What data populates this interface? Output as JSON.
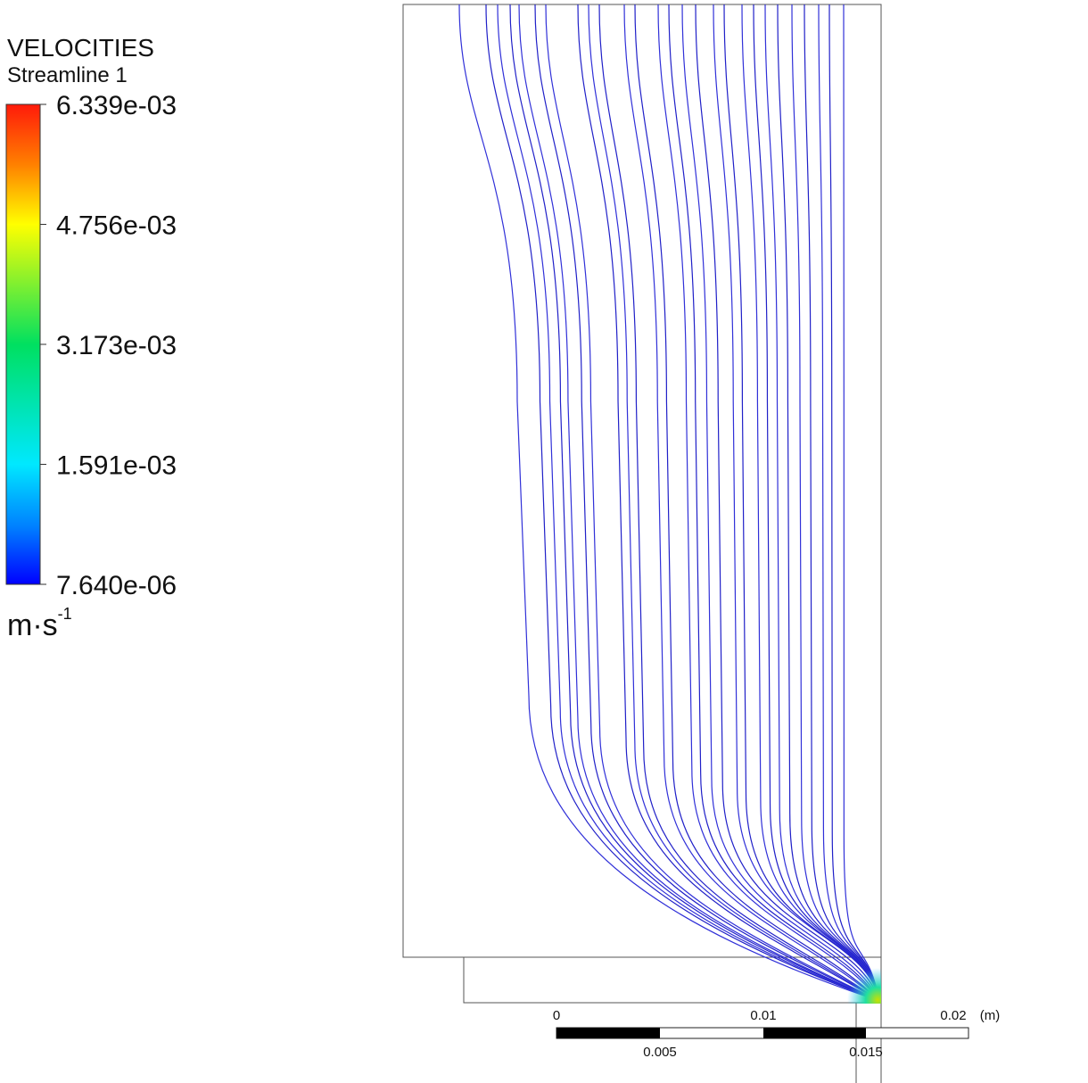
{
  "legend": {
    "title": "VELOCITIES",
    "subtitle": "Streamline 1",
    "labels": [
      "6.339e-03",
      "4.756e-03",
      "3.173e-03",
      "1.591e-03",
      "7.640e-06"
    ],
    "unit": {
      "base": "m·s",
      "exponent": "-1"
    }
  },
  "scale_bar": {
    "top_labels": [
      "0",
      "0.01",
      "0.02"
    ],
    "unit": "(m)",
    "bottom_labels": [
      "0.005",
      "0.015"
    ]
  }
}
